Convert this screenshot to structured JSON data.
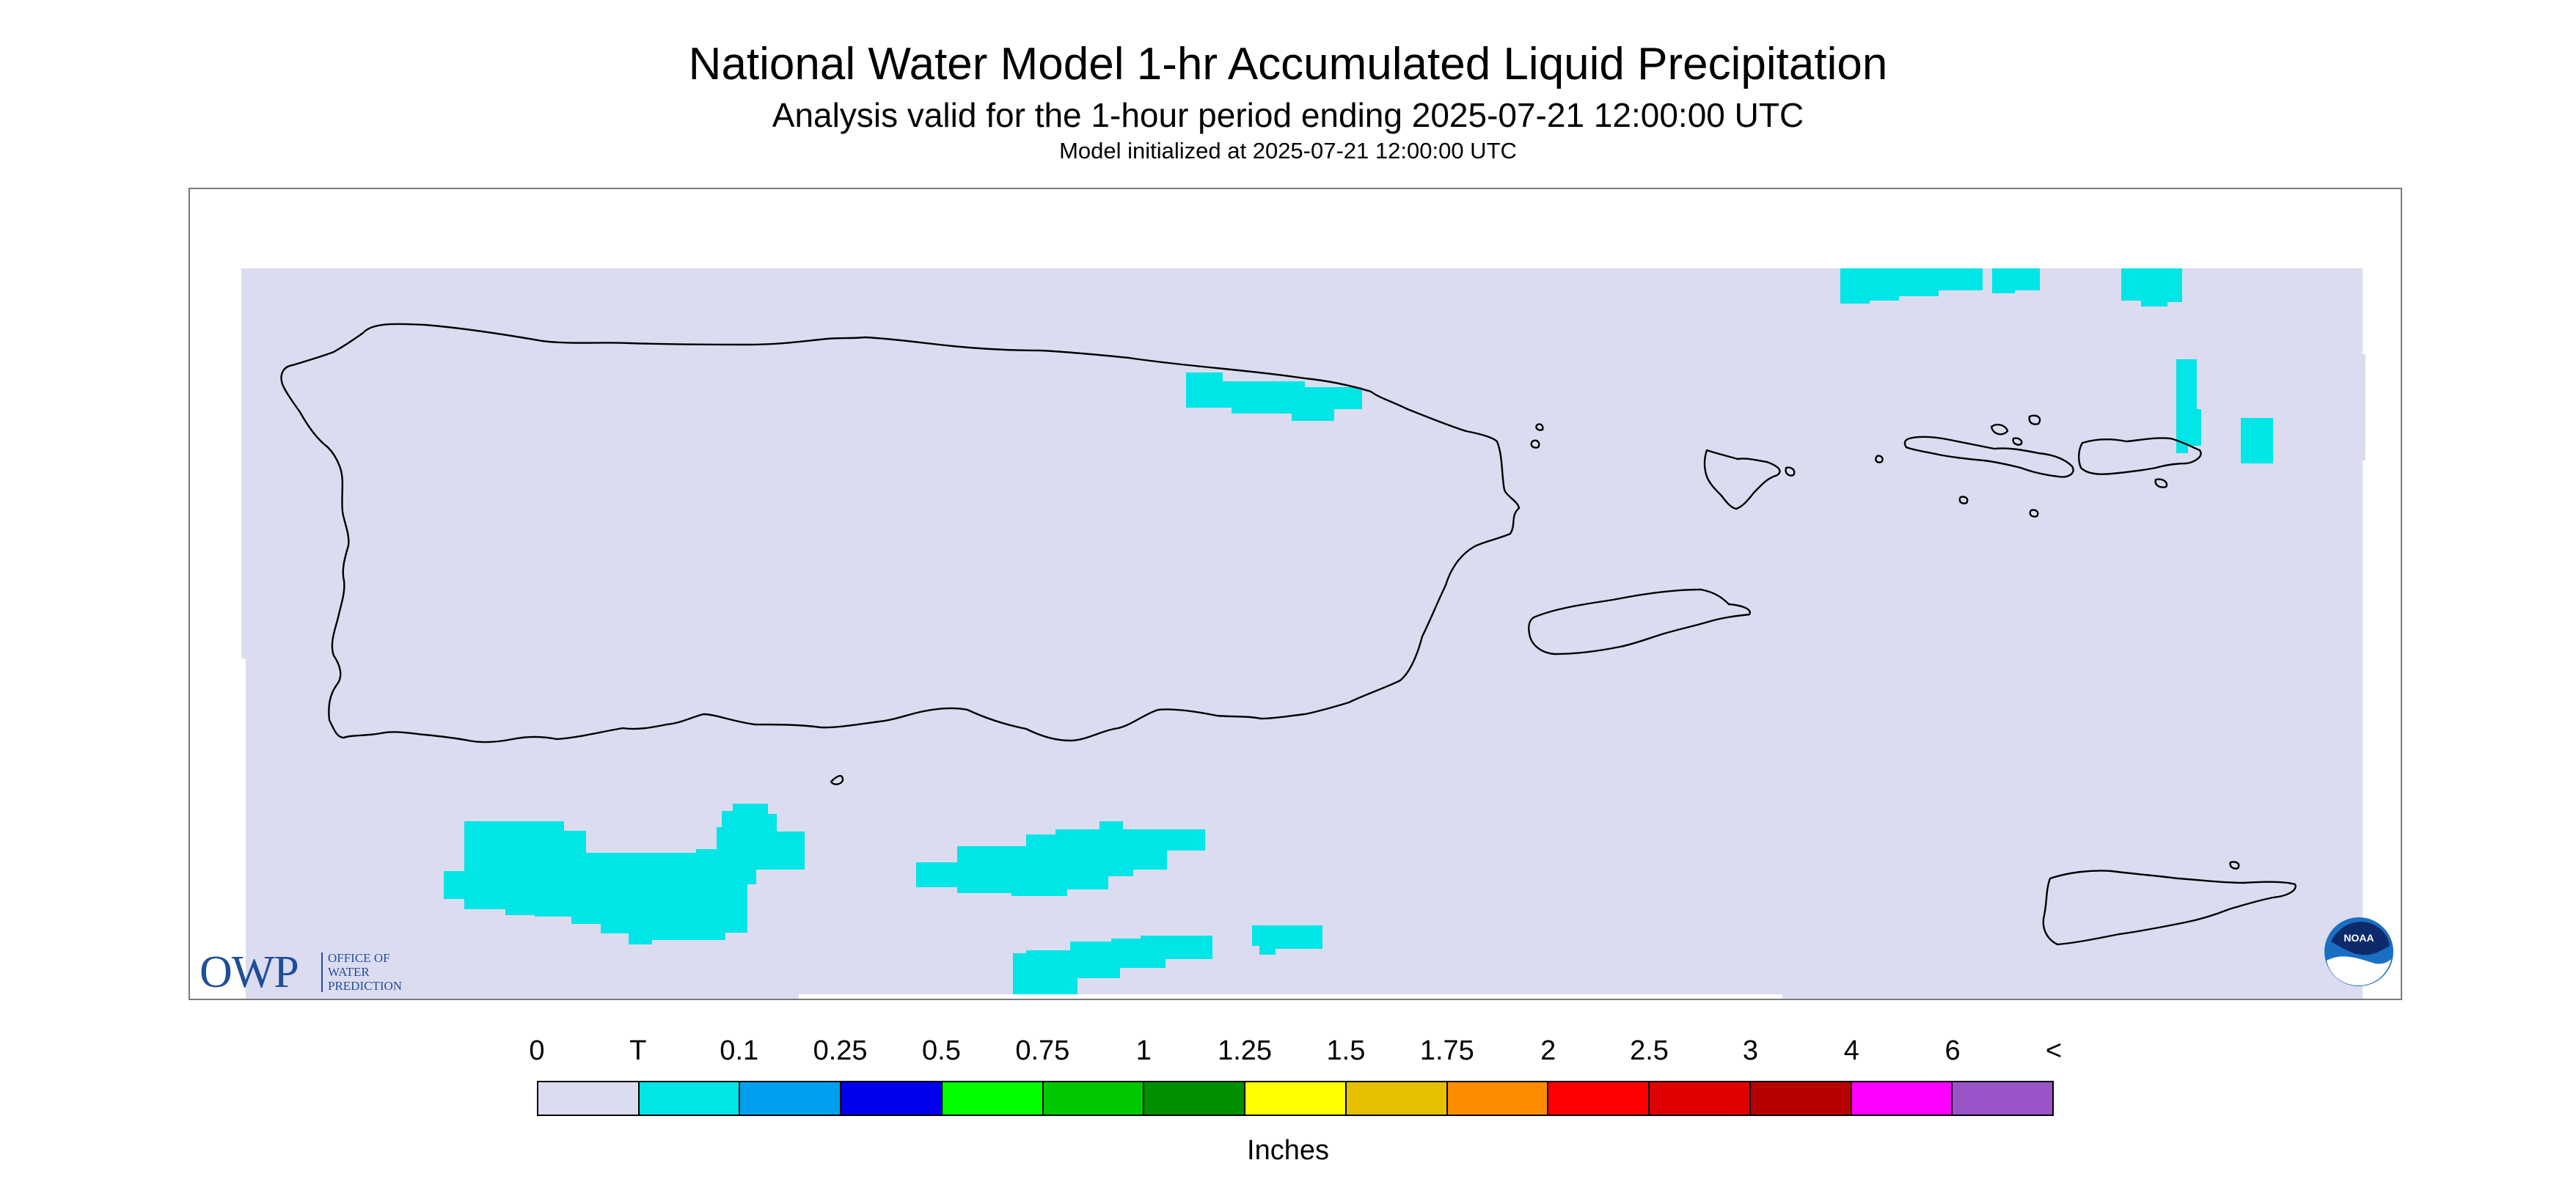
{
  "header": {
    "title": "National Water Model 1-hr Accumulated Liquid Precipitation",
    "subtitle": "Analysis valid for the 1-hour period ending 2025-07-21 12:00:00 UTC",
    "init": "Model initialized at 2025-07-21 12:00:00 UTC"
  },
  "map": {
    "region": "Puerto Rico and U.S. Virgin Islands",
    "background_fill": "#dcdcf0",
    "precip_fill": "#00e5e5",
    "coast_color": "#000000"
  },
  "logos": {
    "owp_mark": "OWP",
    "owp_lines": [
      "OFFICE OF",
      "WATER",
      "PREDICTION"
    ],
    "noaa_text": "NOAA"
  },
  "legend": {
    "labels": [
      "0",
      "T",
      "0.1",
      "0.25",
      "0.5",
      "0.75",
      "1",
      "1.25",
      "1.5",
      "1.75",
      "2",
      "2.5",
      "3",
      "4",
      "6",
      "<"
    ],
    "colors": [
      "#dcdcf0",
      "#00e5e5",
      "#00a0f0",
      "#0000f0",
      "#00ff00",
      "#00c800",
      "#009000",
      "#ffff00",
      "#e6c000",
      "#ff8c00",
      "#ff0000",
      "#e00000",
      "#b80000",
      "#ff00ff",
      "#9955c8"
    ],
    "units": "Inches"
  }
}
